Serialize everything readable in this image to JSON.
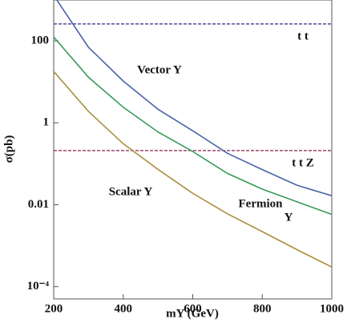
{
  "chart_data": {
    "type": "line",
    "log_y": true,
    "xlabel": "mY (GeV)",
    "ylabel": "σ(pb)",
    "x": [
      200,
      300,
      400,
      500,
      600,
      700,
      800,
      900,
      1000
    ],
    "series": [
      {
        "name": "Vector Y",
        "color": "#4a64a8",
        "values": [
          1300,
          70,
          10.5,
          2.15,
          0.64,
          0.18,
          0.072,
          0.03,
          0.0166
        ]
      },
      {
        "name": "Fermion Y",
        "color": "#3a9a5a",
        "values": [
          125,
          13,
          2.4,
          0.6,
          0.2,
          0.058,
          0.024,
          0.0118,
          0.0058
        ]
      },
      {
        "name": "Scalar Y",
        "color": "#a89040",
        "values": [
          18,
          1.9,
          0.31,
          0.073,
          0.019,
          0.006,
          0.0022,
          0.0008,
          0.0003
        ]
      }
    ],
    "hlines": [
      {
        "label": "t t",
        "value": 260,
        "color": "#2a2a8a"
      },
      {
        "label": "t t Z",
        "value": 0.21,
        "color": "#8a2050"
      }
    ],
    "annotations": [
      "Vector Y",
      "Scalar Y",
      "Fermion",
      "Y"
    ],
    "xlim": [
      200,
      1000
    ],
    "xticks": [
      200,
      400,
      600,
      800,
      1000
    ],
    "ylim": [
      5e-05,
      1000
    ],
    "yticks": [
      100,
      1,
      0.01,
      {
        "value": 0.0001,
        "label": "10⁻⁴"
      }
    ]
  }
}
